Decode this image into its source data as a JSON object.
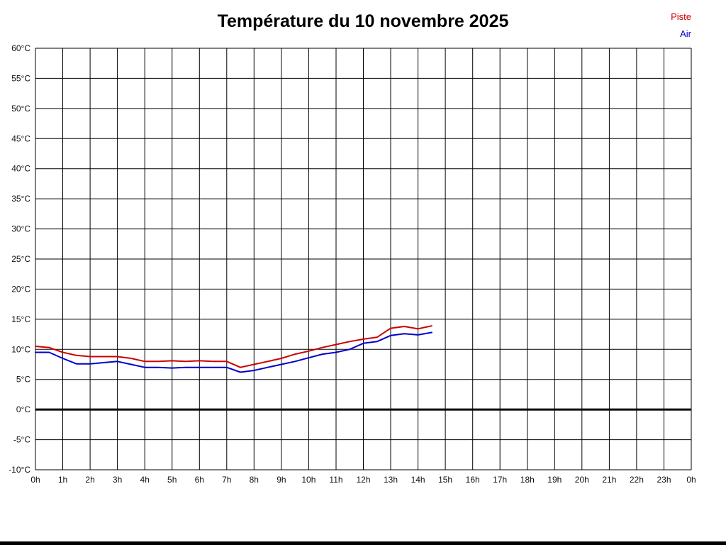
{
  "legend": [
    {
      "label": "Piste",
      "color": "#cc0000"
    },
    {
      "label": "Air",
      "color": "#0000cc"
    }
  ],
  "chart_data": {
    "type": "line",
    "title": "Température du 10 novembre 2025",
    "xlabel": "",
    "ylabel": "",
    "xlim": [
      0,
      24
    ],
    "ylim": [
      -10,
      60
    ],
    "y_step": 5,
    "grid": true,
    "zero_line": true,
    "legend_position": "top-right",
    "x_tick_labels": [
      "0h",
      "1h",
      "2h",
      "3h",
      "4h",
      "5h",
      "6h",
      "7h",
      "8h",
      "9h",
      "10h",
      "11h",
      "12h",
      "13h",
      "14h",
      "15h",
      "16h",
      "17h",
      "18h",
      "19h",
      "20h",
      "21h",
      "22h",
      "23h",
      "0h"
    ],
    "y_tick_labels": [
      "-10°C",
      "-5°C",
      "0°C",
      "5°C",
      "10°C",
      "15°C",
      "20°C",
      "25°C",
      "30°C",
      "35°C",
      "40°C",
      "45°C",
      "50°C",
      "55°C",
      "60°C"
    ],
    "series": [
      {
        "name": "Piste",
        "color": "#cc0000",
        "x": [
          0,
          0.5,
          1,
          1.5,
          2,
          2.5,
          3,
          3.5,
          4,
          4.5,
          5,
          5.5,
          6,
          6.5,
          7,
          7.5,
          8,
          8.5,
          9,
          9.5,
          10,
          10.5,
          11,
          11.5,
          12,
          12.5,
          13,
          13.5,
          14,
          14.5
        ],
        "values": [
          10.5,
          10.3,
          9.5,
          9.0,
          8.8,
          8.8,
          8.8,
          8.5,
          8.0,
          8.0,
          8.1,
          8.0,
          8.1,
          8.0,
          8.0,
          7.0,
          7.5,
          8.0,
          8.5,
          9.2,
          9.7,
          10.3,
          10.8,
          11.3,
          11.7,
          12.0,
          13.5,
          13.8,
          13.4,
          13.9
        ]
      },
      {
        "name": "Air",
        "color": "#0000cc",
        "x": [
          0,
          0.5,
          1,
          1.5,
          2,
          2.5,
          3,
          3.5,
          4,
          4.5,
          5,
          5.5,
          6,
          6.5,
          7,
          7.5,
          8,
          8.5,
          9,
          9.5,
          10,
          10.5,
          11,
          11.5,
          12,
          12.5,
          13,
          13.5,
          14,
          14.5
        ],
        "values": [
          9.5,
          9.5,
          8.5,
          7.6,
          7.6,
          7.8,
          8.0,
          7.5,
          7.0,
          7.0,
          6.9,
          7.0,
          7.0,
          7.0,
          7.0,
          6.2,
          6.5,
          7.0,
          7.5,
          8.0,
          8.6,
          9.2,
          9.5,
          10.0,
          11.0,
          11.3,
          12.3,
          12.6,
          12.4,
          12.8
        ]
      }
    ]
  }
}
